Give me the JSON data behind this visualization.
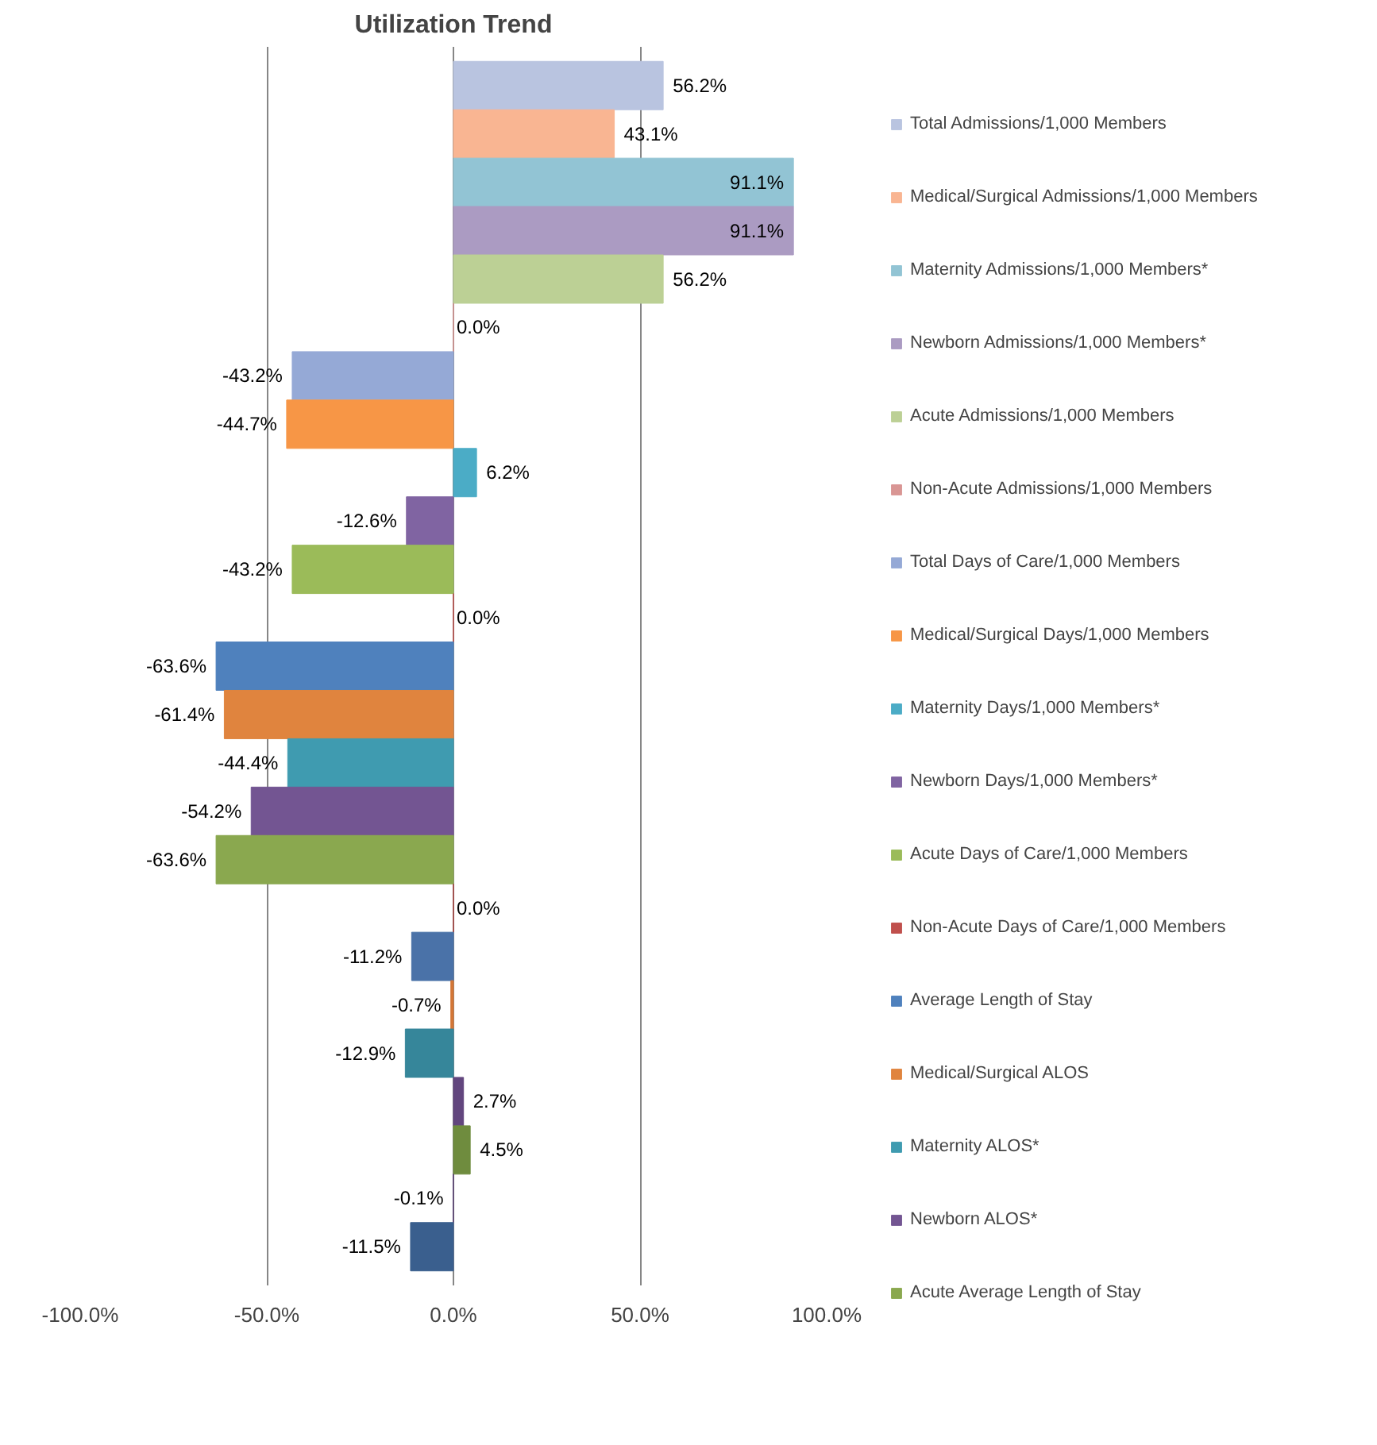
{
  "chart_data": {
    "type": "bar",
    "orientation": "horizontal",
    "title": "Utilization Trend",
    "categories": [
      null
    ],
    "xlim": [
      -100,
      100
    ],
    "xticks": [
      {
        "value": -100,
        "label": "-100.0%"
      },
      {
        "value": -50,
        "label": "-50.0%"
      },
      {
        "value": 0,
        "label": "0.0%"
      },
      {
        "value": 50,
        "label": "50.0%"
      },
      {
        "value": 100,
        "label": "100.0%"
      }
    ],
    "grid": "x",
    "legend": "right",
    "series": [
      {
        "name": "Total Admissions/1,000 Members",
        "color": "#b9c4e0",
        "values": [
          56.2
        ],
        "value_labels": [
          "56.2%"
        ]
      },
      {
        "name": "Medical/Surgical Admissions/1,000 Members",
        "color": "#f9b592",
        "values": [
          43.1
        ],
        "value_labels": [
          "43.1%"
        ]
      },
      {
        "name": "Maternity Admissions/1,000 Members*",
        "color": "#92c4d4",
        "values": [
          91.1
        ],
        "value_labels": [
          "91.1%"
        ]
      },
      {
        "name": "Newborn Admissions/1,000 Members*",
        "color": "#ab9bc2",
        "values": [
          91.1
        ],
        "value_labels": [
          "91.1%"
        ]
      },
      {
        "name": "Acute Admissions/1,000 Members",
        "color": "#bcd095",
        "values": [
          56.2
        ],
        "value_labels": [
          "56.2%"
        ]
      },
      {
        "name": "Non-Acute Admissions/1,000 Members",
        "color": "#d99694",
        "values": [
          0.0
        ],
        "value_labels": [
          "0.0%"
        ]
      },
      {
        "name": "Total Days of Care/1,000 Members",
        "color": "#95a9d6",
        "values": [
          -43.2
        ],
        "value_labels": [
          "-43.2%"
        ]
      },
      {
        "name": "Medical/Surgical Days/1,000 Members",
        "color": "#f79646",
        "values": [
          -44.7
        ],
        "value_labels": [
          "-44.7%"
        ]
      },
      {
        "name": "Maternity Days/1,000 Members*",
        "color": "#4bacc6",
        "values": [
          6.2
        ],
        "value_labels": [
          "6.2%"
        ]
      },
      {
        "name": "Newborn Days/1,000 Members*",
        "color": "#8064a2",
        "values": [
          -12.6
        ],
        "value_labels": [
          "-12.6%"
        ]
      },
      {
        "name": "Acute Days of Care/1,000 Members",
        "color": "#9bbb59",
        "values": [
          -43.2
        ],
        "value_labels": [
          "-43.2%"
        ]
      },
      {
        "name": "Non-Acute Days of Care/1,000 Members",
        "color": "#c0504d",
        "values": [
          0.0
        ],
        "value_labels": [
          "0.0%"
        ]
      },
      {
        "name": "Average Length of Stay",
        "color": "#4f81bd",
        "values": [
          -63.6
        ],
        "value_labels": [
          "-63.6%"
        ]
      },
      {
        "name": "Medical/Surgical ALOS",
        "color": "#e0843e",
        "values": [
          -61.4
        ],
        "value_labels": [
          "-61.4%"
        ]
      },
      {
        "name": "Maternity ALOS*",
        "color": "#3f9bb0",
        "values": [
          -44.4
        ],
        "value_labels": [
          "-44.4%"
        ]
      },
      {
        "name": "Newborn ALOS*",
        "color": "#735592",
        "values": [
          -54.2
        ],
        "value_labels": [
          "-54.2%"
        ]
      },
      {
        "name": "Acute Average Length of Stay",
        "color": "#8aa84f",
        "values": [
          -63.6
        ],
        "value_labels": [
          "-63.6%"
        ]
      },
      {
        "color": "#a9423f",
        "values": [
          0.0
        ],
        "value_labels": [
          "0.0%"
        ]
      },
      {
        "color": "#4a72a8",
        "values": [
          -11.2
        ],
        "value_labels": [
          "-11.2%"
        ]
      },
      {
        "color": "#d47636",
        "values": [
          -0.7
        ],
        "value_labels": [
          "-0.7%"
        ]
      },
      {
        "color": "#36869a",
        "values": [
          -12.9
        ],
        "value_labels": [
          "-12.9%"
        ]
      },
      {
        "color": "#62467e",
        "values": [
          2.7
        ],
        "value_labels": [
          "2.7%"
        ]
      },
      {
        "color": "#6f8c3e",
        "values": [
          4.5
        ],
        "value_labels": [
          "4.5%"
        ]
      },
      {
        "color": "#583c72",
        "values": [
          -0.1
        ],
        "value_labels": [
          "-0.1%"
        ]
      },
      {
        "color": "#3a5f8e",
        "values": [
          -11.5
        ],
        "value_labels": [
          "-11.5%"
        ]
      }
    ]
  }
}
